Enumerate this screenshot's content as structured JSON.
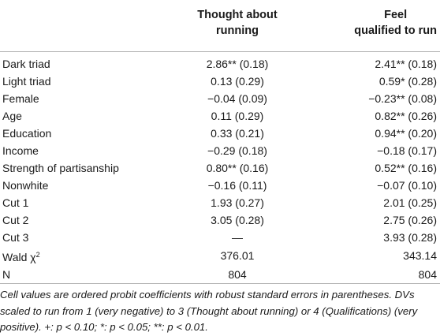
{
  "header": {
    "col1_line1": "Thought about",
    "col1_line2": "running",
    "col2_line1": "Feel",
    "col2_line2": "qualified to run"
  },
  "rows": [
    {
      "label": "Dark triad",
      "v1": "2.86** (0.18)",
      "v2": "2.41** (0.18)"
    },
    {
      "label": "Light triad",
      "v1": "0.13 (0.29)",
      "v2": "0.59* (0.28)"
    },
    {
      "label": "Female",
      "v1": "−0.04 (0.09)",
      "v2": "−0.23** (0.08)"
    },
    {
      "label": "Age",
      "v1": "0.11 (0.29)",
      "v2": "0.82** (0.26)"
    },
    {
      "label": "Education",
      "v1": "0.33 (0.21)",
      "v2": "0.94** (0.20)"
    },
    {
      "label": "Income",
      "v1": "−0.29 (0.18)",
      "v2": "−0.18 (0.17)"
    },
    {
      "label": "Strength of partisanship",
      "v1": "0.80** (0.16)",
      "v2": "0.52** (0.16)"
    },
    {
      "label": "Nonwhite",
      "v1": "−0.16 (0.11)",
      "v2": "−0.07 (0.10)"
    },
    {
      "label": "Cut 1",
      "v1": "1.93 (0.27)",
      "v2": "2.01 (0.25)"
    },
    {
      "label": "Cut 2",
      "v1": "3.05 (0.28)",
      "v2": "2.75 (0.26)"
    },
    {
      "label": "Cut 3",
      "v1": "—",
      "v2": "3.93 (0.28)"
    },
    {
      "label": "Wald χ",
      "label_sup": "2",
      "v1": "376.01",
      "v2": "343.14"
    },
    {
      "label": "N",
      "v1": "804",
      "v2": "804"
    }
  ],
  "note": "Cell values are ordered probit coefficients with robust standard errors in parentheses. DVs scaled to run from 1 (very negative) to 3 (Thought about running) or 4 (Qualifications) (very positive). +: p < 0.10; *: p < 0.05; **: p < 0.01."
}
